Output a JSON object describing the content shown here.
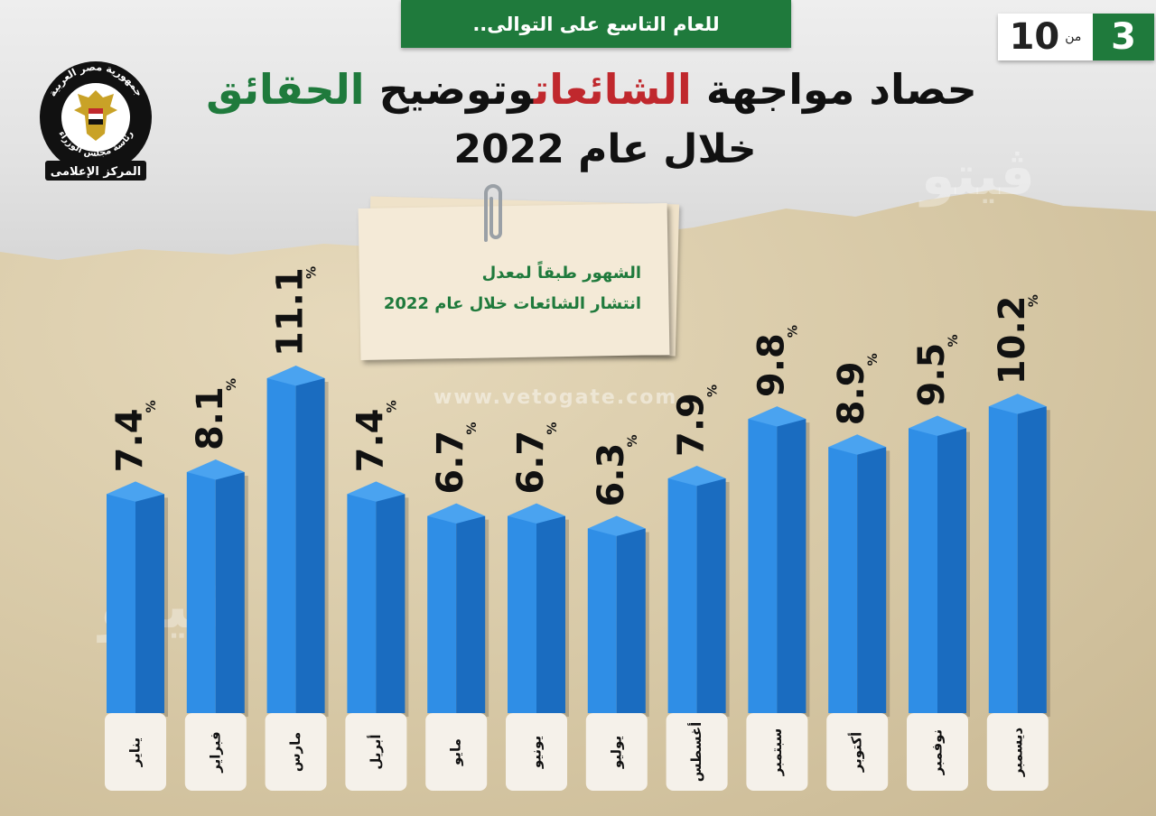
{
  "banner": {
    "text": "للعام التاسع على التوالى.."
  },
  "pager": {
    "current": "3",
    "of_label": "من",
    "total": "10"
  },
  "logo": {
    "top_text": "جمهورية مصر العربية",
    "middle_text": "رئاسة مجلس الوزراء",
    "bottom_text": "المركز الإعلامى",
    "icon": "eagle-emblem-icon"
  },
  "title": {
    "part1": "حصاد مواجهة",
    "highlight_red": "الشائعات",
    "part2": "وتوضيح",
    "highlight_green": "الحقائق",
    "line2": "خلال عام 2022",
    "red_color": "#c0282d",
    "green_color": "#1f7a3c"
  },
  "note": {
    "line1": "الشهور طبقاً لمعدل",
    "line2": "انتشار الشائعات خلال عام 2022"
  },
  "watermarks": {
    "site": "www.vetogate.com"
  },
  "chart_data": {
    "type": "bar",
    "title": "الشهور طبقاً لمعدل انتشار الشائعات خلال عام 2022",
    "categories": [
      "يناير",
      "فبراير",
      "مارس",
      "أبريل",
      "مايو",
      "يونيو",
      "يوليو",
      "أغسطس",
      "سبتمبر",
      "أكتوبر",
      "نوفمبر",
      "ديسمبر"
    ],
    "values": [
      7.4,
      8.1,
      11.1,
      7.4,
      6.7,
      6.7,
      6.3,
      7.9,
      9.8,
      8.9,
      9.5,
      10.2
    ],
    "unit": "%",
    "bar_color": "#1f78d1",
    "grid": false
  }
}
